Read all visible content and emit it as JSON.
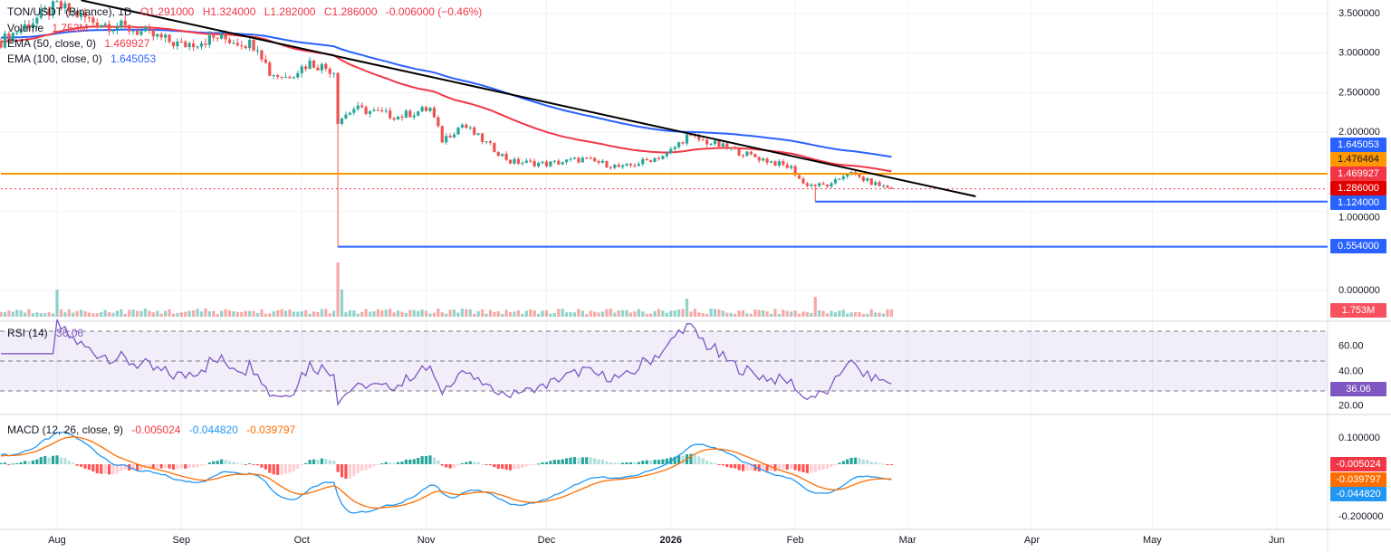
{
  "legend": {
    "symbol": "TON/USDT (Binance), 1D",
    "open": "O1.291000",
    "high": "H1.324000",
    "low": "L1.282000",
    "close": "C1.286000",
    "change": "-0.006000 (−0.46%)",
    "volume_label": "Volume",
    "volume_value": "1.753M",
    "ema50_label": "EMA (50, close, 0)",
    "ema50_value": "1.469927",
    "ema100_label": "EMA (100, close, 0)",
    "ema100_value": "1.645053",
    "rsi_label": "RSI (14)",
    "rsi_value": "36.06",
    "macd_label": "MACD (12, 26, close, 9)",
    "macd_value": "-0.005024",
    "macd_line_value": "-0.044820",
    "macd_signal_value": "-0.039797"
  },
  "colors": {
    "up": "#26a69a",
    "down": "#ef5350",
    "ema50": "#f23645",
    "ema100": "#2962ff",
    "orange": "#ff9800",
    "rsi": "#7e57c2",
    "macd": "#2196f3",
    "signal": "#ff6d00",
    "trend": "#000000"
  },
  "price_axis": [
    "3.500000",
    "3.000000",
    "2.500000",
    "2.000000",
    "1.000000",
    "0.000000"
  ],
  "price_axis_values": [
    3.5,
    3.0,
    2.5,
    2.0,
    1.0,
    0.0
  ],
  "badges": [
    {
      "text": "1.645053",
      "value": 1.645053,
      "bg": "#2962ff",
      "fg": "#ffffff"
    },
    {
      "text": "1.476464",
      "value": 1.476464,
      "bg": "#ff9800",
      "fg": "#131722"
    },
    {
      "text": "1.469927",
      "value": 1.469927,
      "bg": "#f23645",
      "fg": "#ffffff"
    },
    {
      "text": "1.286000",
      "value": 1.286,
      "bg": "#e00000",
      "fg": "#ffffff"
    },
    {
      "text": "1.124000",
      "value": 1.124,
      "bg": "#2962ff",
      "fg": "#ffffff"
    },
    {
      "text": "0.554000",
      "value": 0.554,
      "bg": "#2962ff",
      "fg": "#ffffff"
    }
  ],
  "volume_badge": "1.753M",
  "rsi_axis": [
    "60.00",
    "40.00",
    "20.00"
  ],
  "rsi_axis_values": [
    60,
    40,
    20
  ],
  "rsi_badge": "36.06",
  "macd_axis": [
    "0.100000",
    "-0.200000"
  ],
  "macd_axis_values": [
    0.1,
    -0.2
  ],
  "macd_badges": [
    {
      "text": "-0.005024",
      "bg": "#f23645"
    },
    {
      "text": "-0.039797",
      "bg": "#ff6d00"
    },
    {
      "text": "-0.044820",
      "bg": "#2196f3"
    }
  ],
  "time_axis": [
    {
      "label": "Aug",
      "date": "2025-08-01"
    },
    {
      "label": "Sep",
      "date": "2025-09-01"
    },
    {
      "label": "Oct",
      "date": "2025-10-01"
    },
    {
      "label": "Nov",
      "date": "2025-11-01"
    },
    {
      "label": "Dec",
      "date": "2025-12-01"
    },
    {
      "label": "2026",
      "date": "2026-01-01"
    },
    {
      "label": "Feb",
      "date": "2026-02-01"
    },
    {
      "label": "Mar",
      "date": "2026-03-01"
    },
    {
      "label": "Apr",
      "date": "2026-04-01"
    },
    {
      "label": "May",
      "date": "2026-05-01"
    },
    {
      "label": "Jun",
      "date": "2026-06-01"
    }
  ],
  "chart_data": {
    "type": "candlestick",
    "title": "TON/USDT (Binance), 1D",
    "ylim": [
      0,
      3.7
    ],
    "close_keypoints": [
      [
        "2025-07-18",
        3.15
      ],
      [
        "2025-08-01",
        3.6
      ],
      [
        "2025-08-10",
        3.4
      ],
      [
        "2025-08-20",
        3.3
      ],
      [
        "2025-09-01",
        3.1
      ],
      [
        "2025-09-10",
        3.2
      ],
      [
        "2025-09-20",
        3.1
      ],
      [
        "2025-09-23",
        2.75
      ],
      [
        "2025-09-27",
        2.7
      ],
      [
        "2025-10-03",
        2.88
      ],
      [
        "2025-10-09",
        2.78
      ],
      [
        "2025-10-10",
        2.15
      ],
      [
        "2025-10-14",
        2.3
      ],
      [
        "2025-10-25",
        2.2
      ],
      [
        "2025-11-02",
        2.3
      ],
      [
        "2025-11-05",
        1.9
      ],
      [
        "2025-11-10",
        2.1
      ],
      [
        "2025-11-15",
        1.9
      ],
      [
        "2025-11-22",
        1.63
      ],
      [
        "2025-12-01",
        1.6
      ],
      [
        "2025-12-10",
        1.66
      ],
      [
        "2025-12-20",
        1.55
      ],
      [
        "2025-12-31",
        1.72
      ],
      [
        "2026-01-05",
        1.95
      ],
      [
        "2026-01-12",
        1.85
      ],
      [
        "2026-01-20",
        1.72
      ],
      [
        "2026-01-31",
        1.55
      ],
      [
        "2026-02-03",
        1.35
      ],
      [
        "2026-02-06",
        1.33
      ],
      [
        "2026-02-10",
        1.33
      ],
      [
        "2026-02-14",
        1.5
      ],
      [
        "2026-02-20",
        1.36
      ],
      [
        "2026-02-25",
        1.286
      ]
    ],
    "special_lows": [
      [
        "2025-10-10",
        0.554
      ],
      [
        "2026-02-06",
        1.124
      ]
    ],
    "volume_spikes": [
      [
        "2025-08-01",
        3
      ],
      [
        "2025-10-10",
        6
      ],
      [
        "2025-10-11",
        3
      ],
      [
        "2026-01-05",
        2
      ],
      [
        "2026-02-06",
        2.2
      ]
    ],
    "horizontal_levels": [
      {
        "value": 1.476464,
        "from": "2025-07-18",
        "color": "#ff9800",
        "style": "solid"
      },
      {
        "value": 1.124,
        "from": "2026-02-06",
        "color": "#2962ff",
        "style": "solid"
      },
      {
        "value": 0.554,
        "from": "2025-10-10",
        "color": "#2962ff",
        "style": "solid"
      },
      {
        "value": 1.286,
        "from": "2025-07-18",
        "color": "#f23645",
        "style": "dotted"
      }
    ],
    "trendline": [
      [
        "2025-08-07",
        3.67
      ],
      [
        "2026-03-18",
        1.19
      ]
    ],
    "ema_periods": [
      50,
      100
    ],
    "rsi_period": 14,
    "rsi_levels": [
      70,
      50,
      30
    ],
    "macd_params": [
      12,
      26,
      9
    ]
  }
}
